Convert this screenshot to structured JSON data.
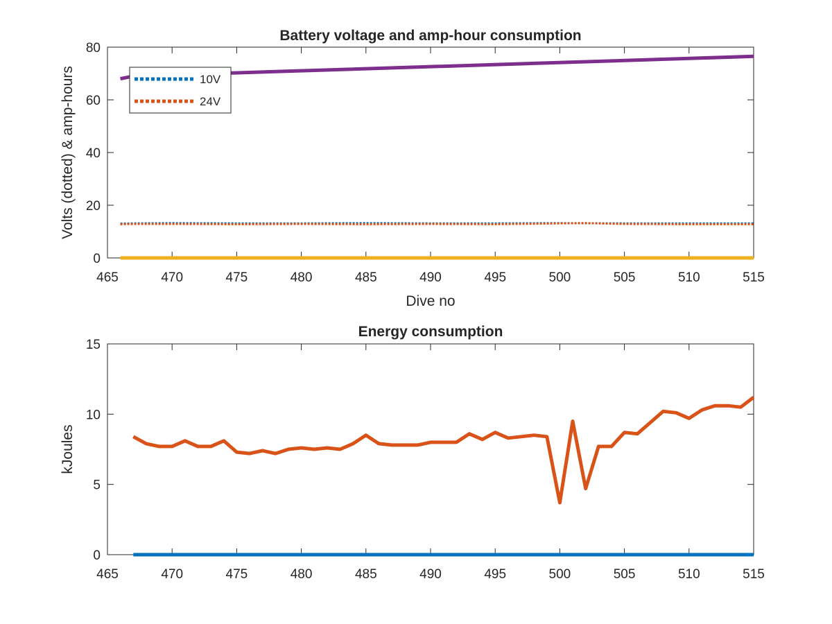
{
  "chart_data": [
    {
      "type": "line",
      "title": "Battery voltage and amp-hour consumption",
      "xlabel": "Dive no",
      "ylabel": "Volts (dotted) & amp-hours",
      "xlim": [
        465,
        515
      ],
      "ylim": [
        0,
        80
      ],
      "xticks": [
        465,
        470,
        475,
        480,
        485,
        490,
        495,
        500,
        505,
        510,
        515
      ],
      "yticks": [
        0,
        20,
        40,
        60,
        80
      ],
      "legend": {
        "placement": "top-left",
        "entries": [
          "10V",
          "24V"
        ]
      },
      "series": [
        {
          "name": "10V",
          "style": "dotted",
          "color": "#0072BD",
          "x": [
            466,
            467,
            470,
            475,
            480,
            485,
            490,
            495,
            500,
            505,
            510,
            515
          ],
          "y": [
            13.0,
            13.1,
            13.2,
            13.1,
            13.1,
            13.2,
            13.1,
            13.1,
            13.2,
            13.1,
            13.1,
            13.1
          ]
        },
        {
          "name": "24V",
          "style": "dotted",
          "color": "#D95319",
          "x": [
            466,
            467,
            470,
            475,
            480,
            485,
            490,
            495,
            500,
            502,
            505,
            510,
            515
          ],
          "y": [
            12.8,
            12.9,
            12.9,
            12.8,
            12.9,
            12.8,
            12.9,
            12.8,
            13.1,
            13.2,
            12.9,
            12.8,
            12.8
          ]
        },
        {
          "style": "solid",
          "color": "#7E2F8E",
          "x": [
            466,
            467,
            515
          ],
          "y": [
            68.0,
            69.0,
            76.5
          ]
        },
        {
          "style": "solid",
          "color": "#EDB120",
          "x": [
            466,
            515
          ],
          "y": [
            0,
            0
          ]
        }
      ]
    },
    {
      "type": "line",
      "title": "Energy consumption",
      "xlabel": "",
      "ylabel": "kJoules",
      "xlim": [
        465,
        515
      ],
      "ylim": [
        0,
        15
      ],
      "xticks": [
        465,
        470,
        475,
        480,
        485,
        490,
        495,
        500,
        505,
        510,
        515
      ],
      "yticks": [
        0,
        5,
        10,
        15
      ],
      "series": [
        {
          "style": "solid",
          "color": "#D95319",
          "x": [
            467,
            468,
            469,
            470,
            471,
            472,
            473,
            474,
            475,
            476,
            477,
            478,
            479,
            480,
            481,
            482,
            483,
            484,
            485,
            486,
            487,
            488,
            489,
            490,
            491,
            492,
            493,
            494,
            495,
            496,
            497,
            498,
            499,
            500,
            501,
            502,
            503,
            504,
            505,
            506,
            507,
            508,
            509,
            510,
            511,
            512,
            513,
            514,
            515
          ],
          "y": [
            8.4,
            7.9,
            7.7,
            7.7,
            8.1,
            7.7,
            7.7,
            8.1,
            7.3,
            7.2,
            7.4,
            7.2,
            7.5,
            7.6,
            7.5,
            7.6,
            7.5,
            7.9,
            8.5,
            7.9,
            7.8,
            7.8,
            7.8,
            8.0,
            8.0,
            8.0,
            8.6,
            8.2,
            8.7,
            8.3,
            8.4,
            8.5,
            8.4,
            3.7,
            9.5,
            4.7,
            7.7,
            7.7,
            8.7,
            8.6,
            9.4,
            10.2,
            10.1,
            9.7,
            10.3,
            10.6,
            10.6,
            10.5,
            11.2
          ]
        },
        {
          "style": "solid",
          "color": "#0072BD",
          "x": [
            467,
            515
          ],
          "y": [
            0,
            0
          ]
        }
      ]
    }
  ]
}
